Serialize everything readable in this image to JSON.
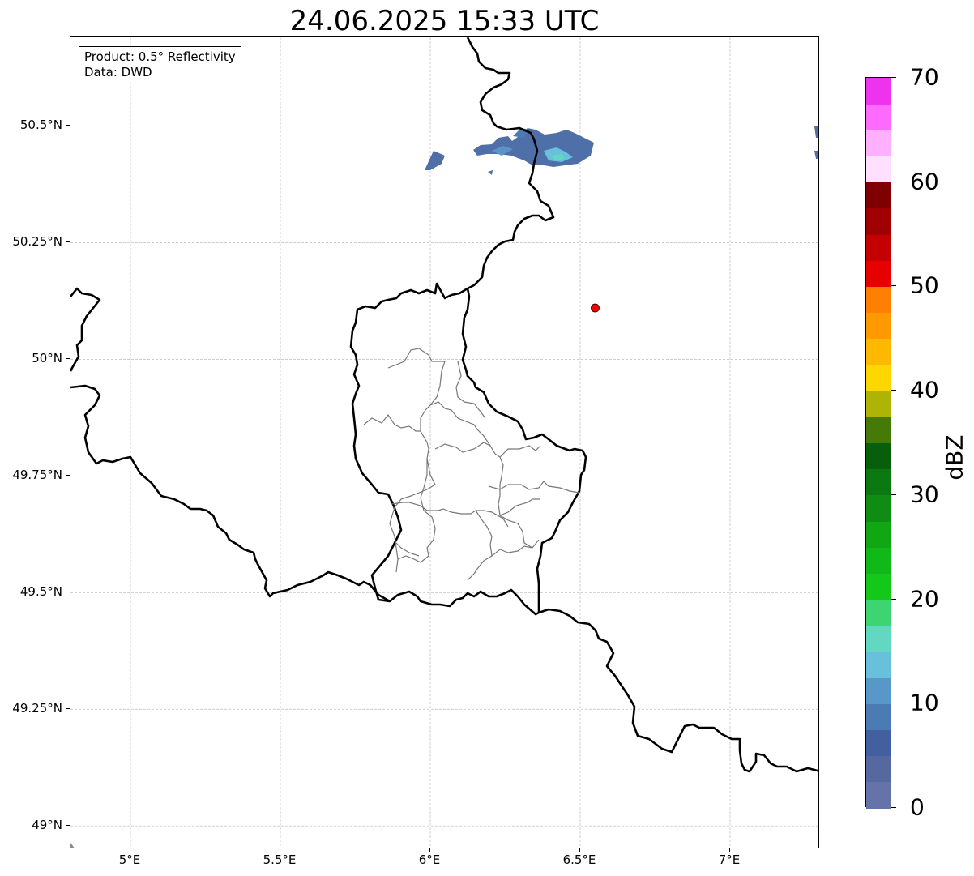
{
  "title": "24.06.2025 15:33 UTC",
  "info": {
    "product": "Product: 0.5° Reflectivity",
    "data": "Data: DWD"
  },
  "map": {
    "lon_range": [
      4.8,
      7.3
    ],
    "lat_range": [
      48.95,
      50.69
    ],
    "lat_ticks": [
      {
        "value": 50.5,
        "label": "50.5°N"
      },
      {
        "value": 50.25,
        "label": "50.25°N"
      },
      {
        "value": 50.0,
        "label": "50°N"
      },
      {
        "value": 49.75,
        "label": "49.75°N"
      },
      {
        "value": 49.5,
        "label": "49.5°N"
      },
      {
        "value": 49.25,
        "label": "49.25°N"
      },
      {
        "value": 49.0,
        "label": "49°N"
      }
    ],
    "lon_ticks": [
      {
        "value": 5.0,
        "label": "5°E"
      },
      {
        "value": 5.5,
        "label": "5.5°E"
      },
      {
        "value": 6.0,
        "label": "6°E"
      },
      {
        "value": 6.5,
        "label": "6.5°E"
      },
      {
        "value": 7.0,
        "label": "7°E"
      }
    ],
    "marker": {
      "lon": 6.55,
      "lat": 50.11,
      "color": "#ff0000"
    }
  },
  "colorbar": {
    "unit": "dBZ",
    "min": 0,
    "max": 70,
    "step": 2.5,
    "labels": [
      "0",
      "10",
      "20",
      "30",
      "40",
      "50",
      "60",
      "70"
    ],
    "colors": [
      "#6673a8",
      "#5568a0",
      "#425fa0",
      "#4a7bb3",
      "#5898c8",
      "#68c0da",
      "#62d8c2",
      "#3dd572",
      "#13c819",
      "#10b918",
      "#10a614",
      "#0e8c13",
      "#0b7811",
      "#075f0b",
      "#457a09",
      "#aeb406",
      "#ffd700",
      "#ffb800",
      "#ff9900",
      "#ff7f00",
      "#e60000",
      "#c40000",
      "#a00000",
      "#7e0000",
      "#ffe0ff",
      "#ffb0ff",
      "#ff6bff",
      "#ee33ee"
    ]
  }
}
